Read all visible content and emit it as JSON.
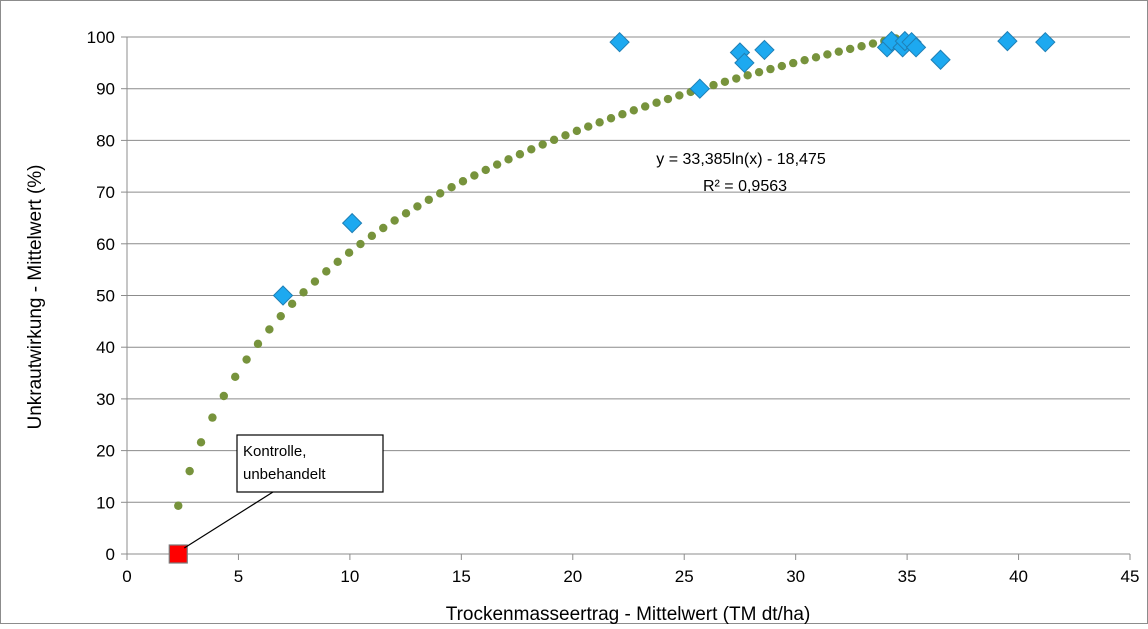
{
  "chart_data": {
    "type": "scatter",
    "xlabel": "Trockenmasseertrag - Mittelwert (TM dt/ha)",
    "ylabel": "Unkrautwirkung - Mittelwert (%)",
    "xlim": [
      0,
      45
    ],
    "ylim": [
      0,
      100
    ],
    "xticks": [
      0,
      5,
      10,
      15,
      20,
      25,
      30,
      35,
      40,
      45
    ],
    "yticks": [
      0,
      10,
      20,
      30,
      40,
      50,
      60,
      70,
      80,
      90,
      100
    ],
    "grid": "horizontal",
    "series": [
      {
        "marker": "diamond",
        "color": "#1DA9F0",
        "points": [
          {
            "x": 7.0,
            "y": 50
          },
          {
            "x": 10.1,
            "y": 64
          },
          {
            "x": 22.1,
            "y": 99
          },
          {
            "x": 25.7,
            "y": 90
          },
          {
            "x": 27.5,
            "y": 97
          },
          {
            "x": 27.7,
            "y": 95
          },
          {
            "x": 28.6,
            "y": 97.5
          },
          {
            "x": 34.1,
            "y": 98
          },
          {
            "x": 34.3,
            "y": 99.2
          },
          {
            "x": 34.8,
            "y": 98
          },
          {
            "x": 34.9,
            "y": 99.2
          },
          {
            "x": 35.2,
            "y": 99
          },
          {
            "x": 35.4,
            "y": 98
          },
          {
            "x": 36.5,
            "y": 95.6
          },
          {
            "x": 39.5,
            "y": 99.2
          },
          {
            "x": 41.2,
            "y": 99
          }
        ]
      },
      {
        "marker": "square",
        "color": "#FF0000",
        "points": [
          {
            "x": 2.3,
            "y": 0
          }
        ]
      }
    ],
    "trendline": {
      "type": "logarithmic",
      "a": 33.385,
      "b": -18.475,
      "x_range": [
        2.3,
        35
      ],
      "color": "#77933C",
      "equation": "y = 33,385ln(x) - 18,475",
      "r_squared": "R² = 0,9563"
    },
    "annotation": {
      "lines": [
        "Kontrolle,",
        "unbehandelt"
      ],
      "target": {
        "x": 2.3,
        "y": 0
      }
    }
  }
}
